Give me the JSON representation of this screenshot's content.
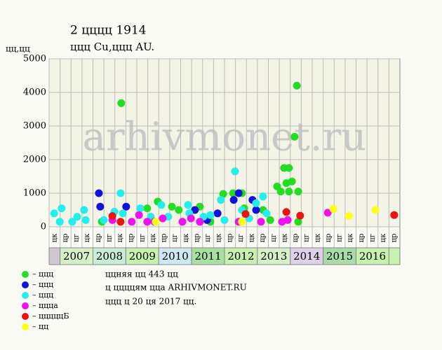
{
  "chart_data": {
    "type": "scatter",
    "title": "2 цццц 1914",
    "subtitle": "ццц Cu,ццц AU.",
    "y_label": "цц,цц",
    "watermark": "arhivmonet.ru",
    "notes": [
      "ццняя цц 443 цц",
      "ц ццццям ццa ARHIVMONET.RU",
      "ццц ц 20 ця 2017 цц."
    ],
    "ylim": [
      0,
      5000
    ],
    "yticks": [
      0,
      1000,
      2000,
      3000,
      4000,
      5000
    ],
    "xlim": [
      2006.667,
      2017.333
    ],
    "grid": true,
    "periods": [
      "цк",
      "цр",
      "цг",
      "цк",
      "цр",
      "цг",
      "цк",
      "цр",
      "цг",
      "цк",
      "цр",
      "цг",
      "цк",
      "цр",
      "цг",
      "цк",
      "цр",
      "цг",
      "цк",
      "цр",
      "цг",
      "цк",
      "цр",
      "цг",
      "цк",
      "цр",
      "цг",
      "цк",
      "цр",
      "цг",
      "цк",
      "цр"
    ],
    "years": [
      "2007",
      "2008",
      "2009",
      "2010",
      "2011",
      "2012",
      "2013",
      "2014",
      "2015",
      "2016"
    ],
    "year_colors": [
      "#d8f0c8",
      "#c8ecd8",
      "#c8f0b0",
      "#cde8f0",
      "#a8e0a0",
      "#c8f0b0",
      "#d8f0c8",
      "#ddd0e8",
      "#a8dca8",
      "#c8f0b0"
    ],
    "series": [
      {
        "name": "– ццц",
        "color": "#22dd22",
        "x": [
          2008.86,
          2008.27,
          2009.97,
          2009.65,
          2010.4,
          2010.61,
          2011.25,
          2011.96,
          2012.26,
          2012.53,
          2012.6,
          2013.17,
          2013.39,
          2013.6,
          2013.71,
          2013.81,
          2013.96,
          2013.88,
          2014.05,
          2013.96,
          2014.13,
          2014.2,
          2014.24,
          2014.24,
          2011.57
        ],
        "values": [
          3680,
          150,
          750,
          550,
          600,
          500,
          600,
          980,
          1000,
          1000,
          550,
          500,
          200,
          1200,
          1050,
          1750,
          1750,
          1300,
          1350,
          1050,
          2680,
          4200,
          1050,
          150,
          150
        ]
      },
      {
        "name": "– ццц",
        "color": "#1111dd",
        "x": [
          2008.18,
          2008.22,
          2009.01,
          2011.1,
          2011.79,
          2012.28,
          2012.43,
          2012.85,
          2012.96,
          2011.47
        ],
        "values": [
          1000,
          600,
          600,
          500,
          400,
          800,
          1000,
          800,
          500,
          200
        ]
      },
      {
        "name": "– ццц",
        "color": "#22eeee",
        "x": [
          2006.82,
          2007.05,
          2006.99,
          2007.37,
          2007.52,
          2007.73,
          2007.78,
          2008.33,
          2008.65,
          2008.84,
          2008.91,
          2009.44,
          2009.76,
          2010.08,
          2010.29,
          2010.89,
          2010.93,
          2011.36,
          2011.57,
          2011.89,
          2012.0,
          2012.32,
          2012.53,
          2012.75,
          2012.96,
          2013.17,
          2013.28
        ],
        "values": [
          400,
          550,
          150,
          150,
          300,
          500,
          200,
          200,
          450,
          1000,
          400,
          550,
          300,
          650,
          300,
          650,
          400,
          300,
          350,
          800,
          200,
          1650,
          500,
          250,
          700,
          900,
          400
        ]
      },
      {
        "name": "– ццца",
        "color": "#ee11ee",
        "x": [
          2008.59,
          2009.18,
          2009.4,
          2009.65,
          2009.87,
          2010.12,
          2010.72,
          2010.98,
          2011.25,
          2012.43,
          2013.11,
          2013.75,
          2013.92,
          2015.14
        ],
        "values": [
          200,
          150,
          350,
          150,
          150,
          250,
          150,
          250,
          150,
          150,
          150,
          150,
          200,
          420
        ]
      },
      {
        "name": "– цццццБ",
        "color": "#ee1111",
        "x": [
          2008.59,
          2008.84,
          2012.64,
          2013.88,
          2014.3,
          2017.16
        ],
        "values": [
          320,
          150,
          380,
          440,
          330,
          350
        ]
      },
      {
        "name": "– цц",
        "color": "#ffff11",
        "x": [
          2009.91,
          2012.53,
          2015.31,
          2015.78,
          2016.59
        ],
        "values": [
          150,
          150,
          530,
          320,
          500
        ]
      }
    ]
  }
}
